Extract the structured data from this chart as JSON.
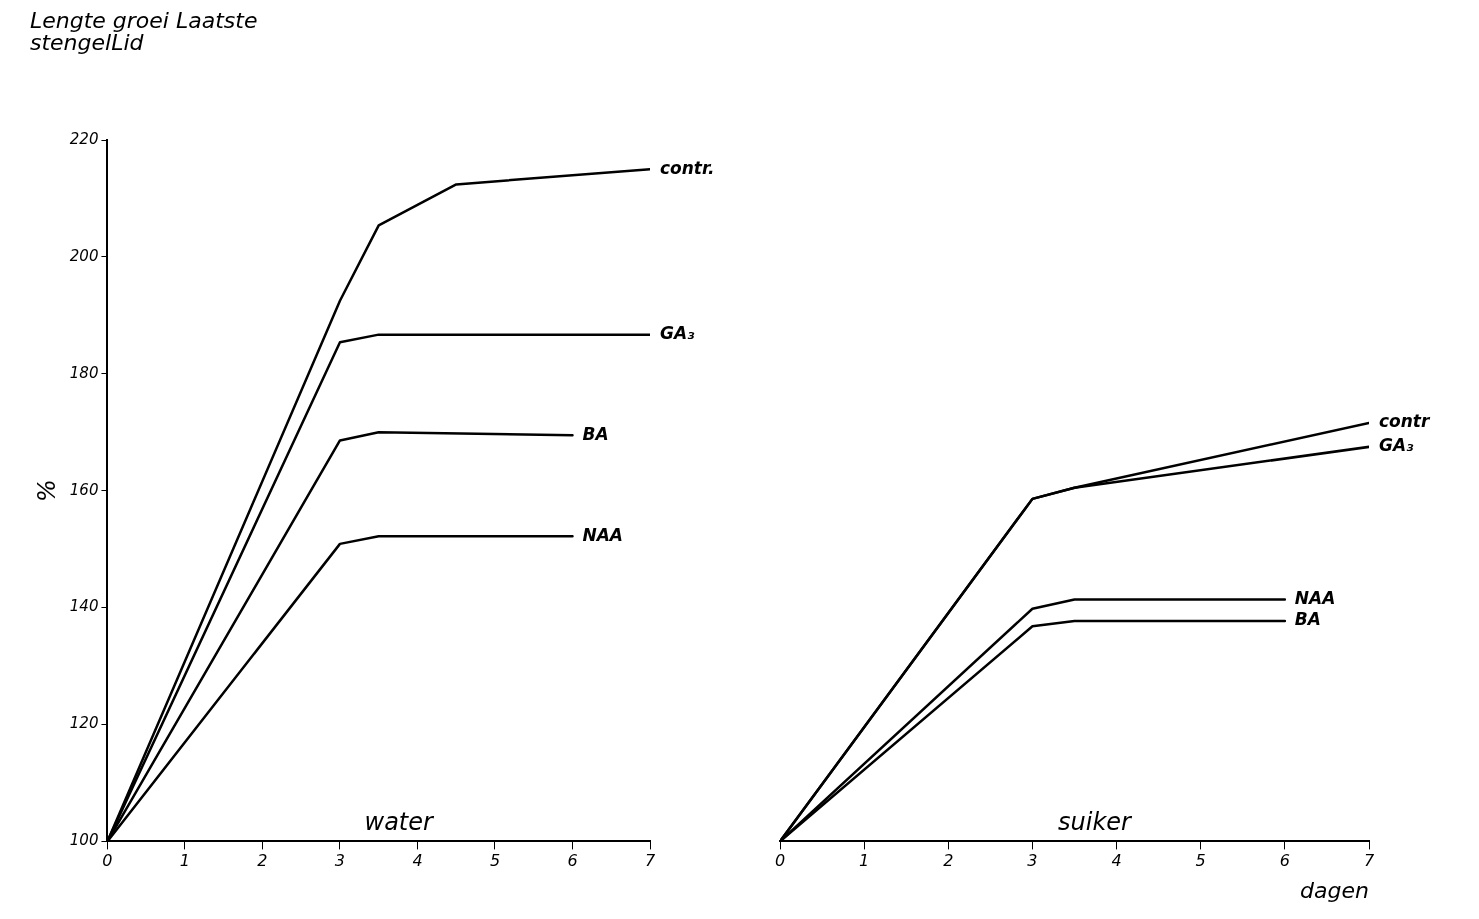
{
  "chart_data": [
    {
      "type": "line",
      "title": "Lengte groei Laatste\nstengelLid",
      "ylabel": "%",
      "annotations": [
        "water"
      ],
      "xlim": [
        0,
        7
      ],
      "xticks": [
        0,
        1,
        2,
        3,
        4,
        5,
        6,
        7
      ],
      "ylim": [
        100,
        220
      ],
      "yticks": [
        100,
        120,
        140,
        160,
        180,
        200,
        220
      ],
      "grid": false,
      "legend": false,
      "marker": "none",
      "line_style": "solid",
      "series": [
        {
          "name": "contr.",
          "color": "#000000",
          "x": [
            0,
            3,
            3.5,
            4,
            4.5,
            7
          ],
          "values": [
            100,
            192.5,
            205.4,
            208.9,
            212.4,
            215
          ]
        },
        {
          "name": "GA₃",
          "color": "#000000",
          "x": [
            0,
            3,
            3.5,
            7
          ],
          "values": [
            100,
            185.4,
            186.7,
            186.7
          ]
        },
        {
          "name": "BA",
          "color": "#000000",
          "x": [
            0,
            3,
            3.5,
            6
          ],
          "values": [
            100,
            168.6,
            170,
            169.5
          ]
        },
        {
          "name": "NAA",
          "color": "#000000",
          "x": [
            0,
            3,
            3.5,
            6
          ],
          "values": [
            100,
            150.9,
            152.2,
            152.2
          ]
        }
      ]
    },
    {
      "type": "line",
      "xlabel": "dagen",
      "annotations": [
        "suiker"
      ],
      "xlim": [
        0,
        7
      ],
      "xticks": [
        0,
        1,
        2,
        3,
        4,
        5,
        6,
        7
      ],
      "ylim": [
        100,
        220
      ],
      "tick_labels": "x",
      "grid": false,
      "legend": false,
      "marker": "none",
      "line_style": "solid",
      "series": [
        {
          "name": "contr",
          "color": "#000000",
          "x": [
            0,
            3,
            3.5,
            7
          ],
          "values": [
            100,
            158.6,
            160.5,
            171.6
          ]
        },
        {
          "name": "GA₃",
          "color": "#000000",
          "x": [
            0,
            3,
            3.5,
            7
          ],
          "values": [
            100,
            158.6,
            160.5,
            167.5
          ]
        },
        {
          "name": "NAA",
          "color": "#000000",
          "x": [
            0,
            3,
            3.5,
            6
          ],
          "values": [
            100,
            139.8,
            141.4,
            141.4
          ]
        },
        {
          "name": "BA",
          "color": "#000000",
          "x": [
            0,
            3,
            3.5,
            6
          ],
          "values": [
            100,
            136.8,
            137.7,
            137.7
          ]
        }
      ]
    }
  ]
}
